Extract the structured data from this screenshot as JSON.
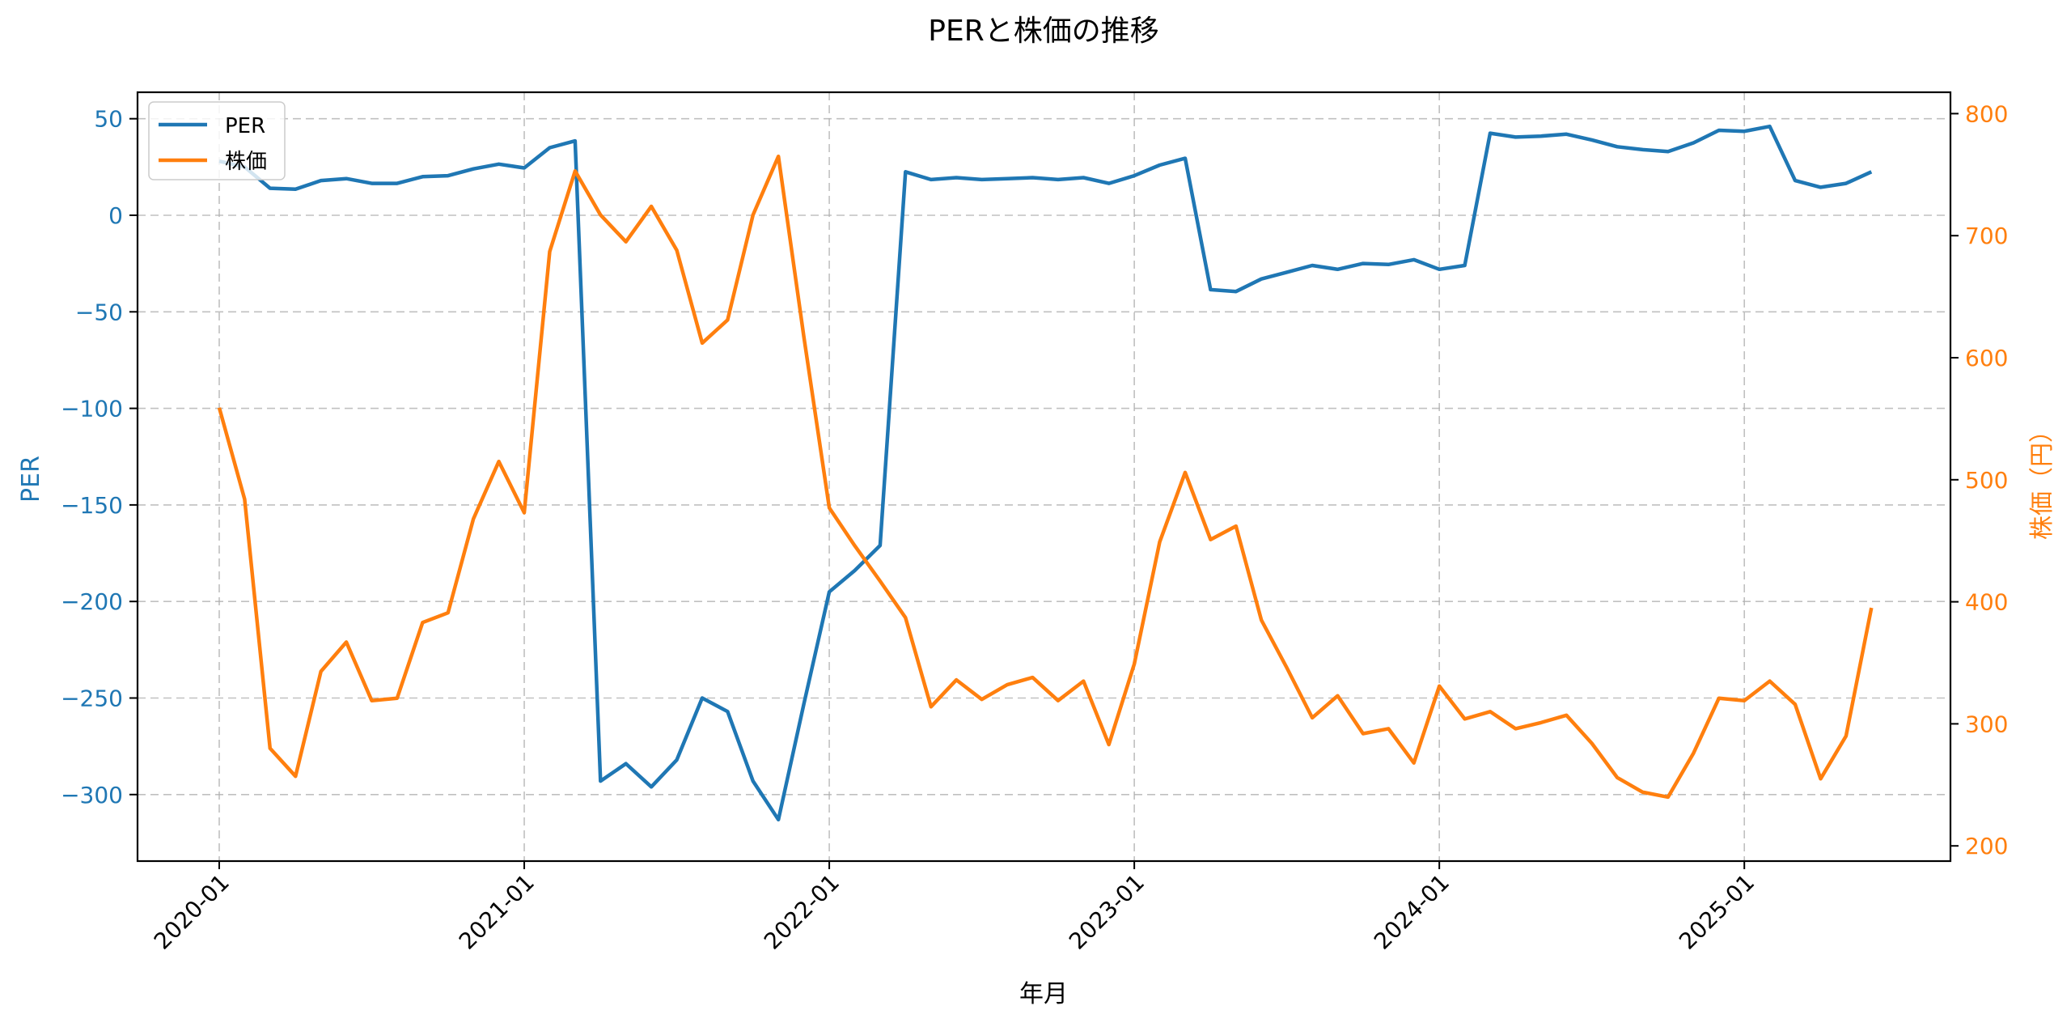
{
  "chart_data": {
    "type": "line",
    "title": "PERと株価の推移",
    "xlabel": "年月",
    "ylabel_left": "PER",
    "ylabel_right": "株価（円）",
    "ylim_left": [
      -333,
      62
    ],
    "ylim_right": [
      185,
      815
    ],
    "yticks_left": [
      50,
      0,
      -50,
      -100,
      -150,
      -200,
      -250,
      -300
    ],
    "yticks_right": [
      800,
      700,
      600,
      500,
      400,
      300,
      200
    ],
    "xtick_labels": [
      "2020-01",
      "2021-01",
      "2022-01",
      "2023-01",
      "2024-01",
      "2025-01"
    ],
    "xtick_indices": [
      0,
      12,
      24,
      36,
      48,
      60
    ],
    "grid": true,
    "legend_position": "upper left",
    "x": [
      "2020-01",
      "2020-02",
      "2020-03",
      "2020-04",
      "2020-05",
      "2020-06",
      "2020-07",
      "2020-08",
      "2020-09",
      "2020-10",
      "2020-11",
      "2020-12",
      "2021-01",
      "2021-02",
      "2021-03",
      "2021-04",
      "2021-05",
      "2021-06",
      "2021-07",
      "2021-08",
      "2021-09",
      "2021-10",
      "2021-11",
      "2021-12",
      "2022-01",
      "2022-02",
      "2022-03",
      "2022-04",
      "2022-05",
      "2022-06",
      "2022-07",
      "2022-08",
      "2022-09",
      "2022-10",
      "2022-11",
      "2022-12",
      "2023-01",
      "2023-02",
      "2023-03",
      "2023-04",
      "2023-05",
      "2023-06",
      "2023-07",
      "2023-08",
      "2023-09",
      "2023-10",
      "2023-11",
      "2023-12",
      "2024-01",
      "2024-02",
      "2024-03",
      "2024-04",
      "2024-05",
      "2024-06",
      "2024-07",
      "2024-08",
      "2024-09",
      "2024-10",
      "2024-11",
      "2024-12",
      "2025-01",
      "2025-02",
      "2025-03",
      "2025-04",
      "2025-05",
      "2025-06"
    ],
    "series": [
      {
        "name": "PER",
        "axis": "left",
        "color": "#1f77b4",
        "values": [
          28,
          25,
          14,
          13.5,
          18,
          19,
          16.5,
          16.5,
          20,
          20.5,
          24,
          26.5,
          24.5,
          35,
          38.5,
          -293,
          -284,
          -296,
          -282,
          -250,
          -257,
          -293,
          -313,
          -253,
          -195,
          -184,
          -171,
          22.5,
          18.5,
          19.5,
          18.5,
          19,
          19.5,
          18.5,
          19.5,
          16.5,
          20.5,
          26,
          29.5,
          -38.5,
          -39.5,
          -33,
          -29.5,
          -26,
          -28,
          -25,
          -25.5,
          -23,
          -28,
          -26,
          42.5,
          40.5,
          41,
          42,
          39,
          35.5,
          34,
          33,
          37.5,
          44,
          43.5,
          46,
          18,
          14.5,
          16.5,
          22.5
        ]
      },
      {
        "name": "株価",
        "axis": "right",
        "color": "#ff7f0e",
        "values": [
          559,
          484,
          280,
          257,
          343,
          367,
          319,
          321,
          383,
          391,
          468,
          515,
          473,
          687,
          753,
          717,
          695,
          724,
          688,
          612,
          631,
          717,
          765,
          617,
          477,
          446,
          417,
          387,
          314,
          336,
          320,
          332,
          338,
          319,
          335,
          283,
          349,
          449,
          506,
          451,
          462,
          385,
          346,
          305,
          323,
          292,
          296,
          268,
          331,
          304,
          310,
          296,
          301,
          307,
          284,
          256,
          244,
          240,
          276,
          321,
          319,
          335,
          316,
          255,
          290,
          395
        ]
      }
    ]
  },
  "legend": {
    "items": [
      {
        "label": "PER",
        "color": "#1f77b4"
      },
      {
        "label": "株価",
        "color": "#ff7f0e"
      }
    ]
  }
}
